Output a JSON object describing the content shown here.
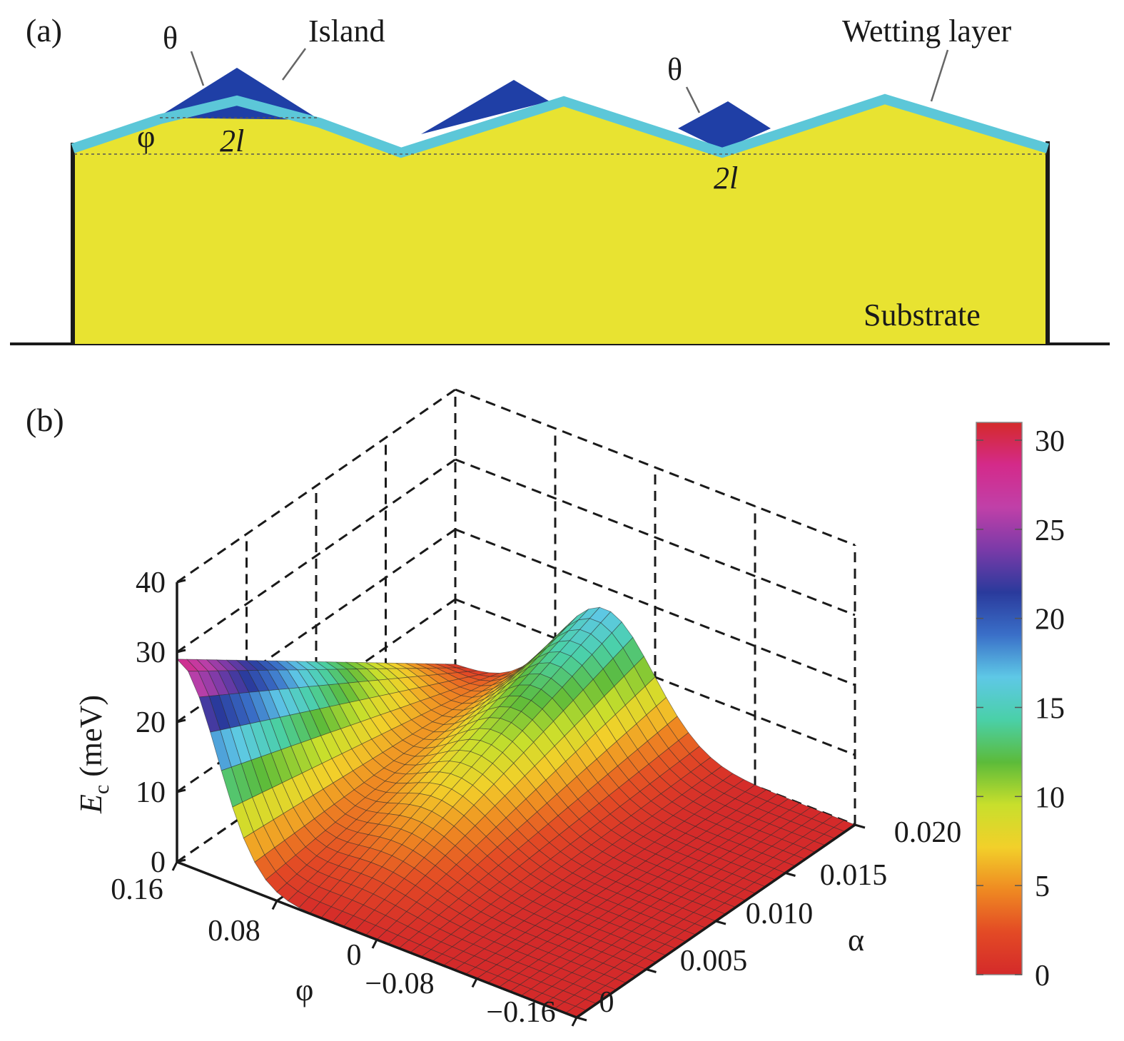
{
  "panel_a": {
    "panel_label": "(a)",
    "labels": {
      "theta_left": "θ",
      "theta_right": "θ",
      "island": "Island",
      "wetting_layer": "Wetting layer",
      "phi": "φ",
      "two_l_left": "2l",
      "two_l_right": "2l",
      "substrate": "Substrate"
    },
    "colors": {
      "substrate": "#e8e331",
      "wetting_layer": "#5cc7d8",
      "island": "#1f3fa6"
    }
  },
  "panel_b": {
    "panel_label": "(b)",
    "chart_data": {
      "type": "surface3d",
      "zlabel_main": "E",
      "zlabel_sub": "c",
      "zlabel_unit": " (meV)",
      "xlabel": "φ",
      "ylabel": "α",
      "z_ticks": [
        "0",
        "10",
        "20",
        "30",
        "40"
      ],
      "phi_ticks": [
        "0.16",
        "0.08",
        "0",
        "−0.08",
        "−0.16"
      ],
      "alpha_ticks": [
        "0",
        "0.005",
        "0.010",
        "0.015",
        "0.020"
      ],
      "zlim": [
        0,
        40
      ],
      "xlim": [
        -0.16,
        0.16
      ],
      "ylim": [
        0,
        0.02
      ],
      "grid": true,
      "description_values": {
        "max_at_phi_0.16_alpha_0": 29,
        "ridge_max_at_alpha_0.02": 17
      },
      "colorbar": {
        "ticks": [
          "0",
          "5",
          "10",
          "15",
          "20",
          "25",
          "30"
        ],
        "range": [
          0,
          31
        ],
        "colormap": [
          "#d42a2a",
          "#e34a25",
          "#ef8a22",
          "#f2d02a",
          "#c8df2c",
          "#5cbb3a",
          "#4ad0a8",
          "#5ec8e6",
          "#3a6fc8",
          "#2a3a9c",
          "#7a3aa8",
          "#c040a8",
          "#d42a8a",
          "#d42a2a"
        ]
      }
    }
  }
}
